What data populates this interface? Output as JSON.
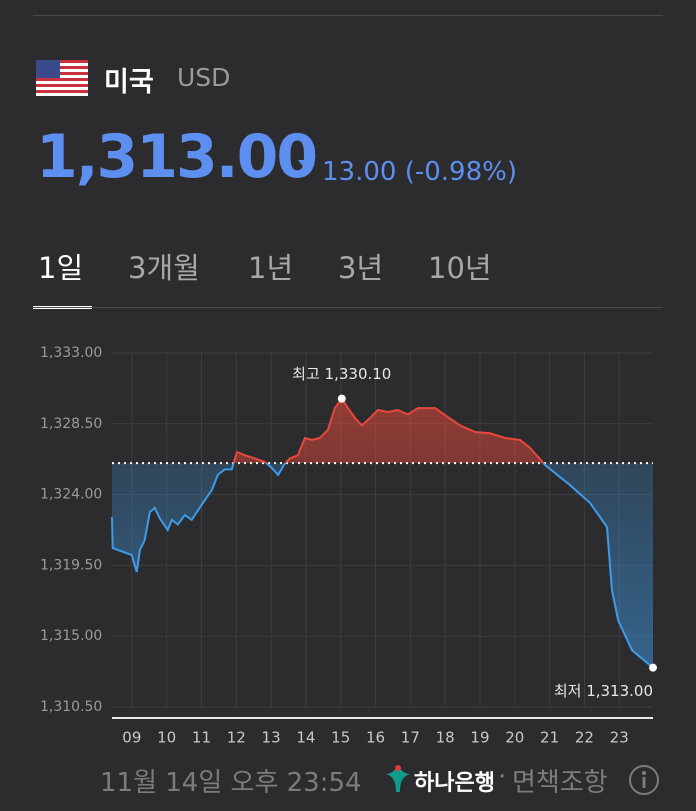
{
  "header": {
    "country": "미국",
    "currency": "USD",
    "price": "1,313.00",
    "change": "13.00",
    "change_percent": "(-0.98%)"
  },
  "tabs": {
    "items": [
      "1일",
      "3개월",
      "1년",
      "3년",
      "10년"
    ],
    "active": 0
  },
  "chart_data": {
    "type": "line",
    "x": [
      8.43,
      8.45,
      9.0,
      9.14,
      9.23,
      9.37,
      9.52,
      9.66,
      9.8,
      10.03,
      10.15,
      10.32,
      10.52,
      10.72,
      10.9,
      11.1,
      11.3,
      11.47,
      11.67,
      11.87,
      12.02,
      12.25,
      12.53,
      12.82,
      13.02,
      13.2,
      13.37,
      13.54,
      13.77,
      13.97,
      14.17,
      14.4,
      14.63,
      14.83,
      15.03,
      15.21,
      15.41,
      15.61,
      15.84,
      16.07,
      16.36,
      16.64,
      16.93,
      17.22,
      17.71,
      17.99,
      18.43,
      18.86,
      19.29,
      19.72,
      20.15,
      20.44,
      20.87,
      21.59,
      22.16,
      22.65,
      22.79,
      22.97,
      23.37,
      23.97
    ],
    "values": [
      1322.58,
      1320.6,
      1320.16,
      1319.08,
      1320.48,
      1321.1,
      1322.9,
      1323.15,
      1322.5,
      1321.75,
      1322.4,
      1322.1,
      1322.7,
      1322.4,
      1323.0,
      1323.66,
      1324.3,
      1325.25,
      1325.6,
      1325.6,
      1326.7,
      1326.5,
      1326.3,
      1326.07,
      1325.7,
      1325.25,
      1325.9,
      1326.3,
      1326.5,
      1327.6,
      1327.47,
      1327.6,
      1328.1,
      1329.5,
      1330.1,
      1329.5,
      1328.87,
      1328.4,
      1328.87,
      1329.38,
      1329.25,
      1329.38,
      1329.1,
      1329.5,
      1329.5,
      1329.06,
      1328.4,
      1327.98,
      1327.9,
      1327.6,
      1327.47,
      1326.96,
      1325.88,
      1324.6,
      1323.47,
      1321.94,
      1317.94,
      1316.0,
      1314.1,
      1313.0
    ],
    "reference": 1326,
    "color_above": "#e8483b",
    "color_below": "#3d9be9",
    "high_index": 34,
    "low_index": 59,
    "high_label": "최고 1,330.10",
    "low_label": "최저 1,313.00",
    "xlim": [
      8.43,
      23.97
    ],
    "xticks": [
      {
        "value": 9,
        "label": "09"
      },
      10,
      11,
      12,
      13,
      14,
      15,
      16,
      17,
      18,
      19,
      20,
      21,
      22,
      23
    ],
    "ylim": [
      1310.5,
      1333
    ],
    "yticks": [
      {
        "value": 1310.5,
        "label": "1,310.50"
      },
      {
        "value": 1315,
        "label": "1,315.00"
      },
      {
        "value": 1319.5,
        "label": "1,319.50"
      },
      {
        "value": 1324,
        "label": "1,324.00"
      },
      {
        "value": 1328.5,
        "label": "1,328.50"
      },
      {
        "value": 1333,
        "label": "1,333.00"
      }
    ],
    "grid": true
  },
  "footer": {
    "timestamp": "11월 14일 오후 23:54",
    "bank": "하나은행",
    "separator": "·",
    "disclaimer": "면책조항"
  }
}
